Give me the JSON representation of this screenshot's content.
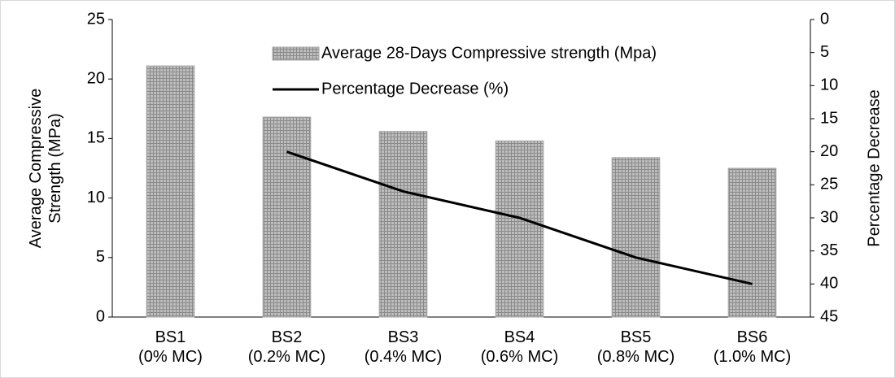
{
  "chart_data": {
    "type": "bar_line",
    "categories": [
      "BS1\n(0% MC)",
      "BS2\n(0.2% MC)",
      "BS3\n(0.4% MC)",
      "BS4\n(0.6% MC)",
      "BS5\n(0.8% MC)",
      "BS6\n(1.0% MC)"
    ],
    "series": [
      {
        "name": "Average 28-Days Compressive strength (Mpa)",
        "type": "bar",
        "color": "#a6a6a6",
        "values": [
          21.1,
          16.8,
          15.6,
          14.8,
          13.4,
          12.5
        ]
      },
      {
        "name": "Percentage Decrease (%)",
        "type": "line",
        "axis": "y2",
        "color": "#000000",
        "values": [
          null,
          20,
          26,
          30,
          36,
          40
        ]
      }
    ],
    "ylabel": "Average Compressive\nStrength (MPa)",
    "y2label": "Percentage Decrease",
    "ylim": [
      0,
      25
    ],
    "yticks": [
      0,
      5,
      10,
      15,
      20,
      25
    ],
    "y2lim": [
      45,
      0
    ],
    "y2ticks": [
      0,
      5,
      10,
      15,
      20,
      25,
      30,
      35,
      40,
      45
    ],
    "grid": false
  }
}
